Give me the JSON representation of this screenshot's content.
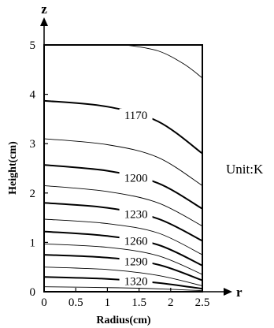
{
  "chart_data": {
    "type": "contour",
    "x": {
      "label": "Radius(cm)",
      "range": [
        0,
        2.5
      ],
      "ticks": [
        0,
        0.5,
        1,
        1.5,
        2,
        2.5
      ],
      "tick_labels": [
        "0",
        "0.5",
        "1",
        "1.5",
        "2",
        "2.5"
      ],
      "arrow_label": "r"
    },
    "y": {
      "label": "Height(cm)",
      "range": [
        0,
        5
      ],
      "ticks": [
        0,
        1,
        2,
        3,
        4,
        5
      ],
      "tick_labels": [
        "0",
        "1",
        "2",
        "3",
        "4",
        "5"
      ],
      "arrow_label": "z"
    },
    "unit": "Unit:K",
    "contours": [
      {
        "level": 1335,
        "label": "",
        "major": false,
        "points": [
          [
            0,
            0.1
          ],
          [
            1.2,
            0.08
          ],
          [
            2.0,
            0.05
          ],
          [
            2.5,
            0.02
          ]
        ]
      },
      {
        "level": 1320,
        "label": "1320",
        "major": true,
        "points": [
          [
            0,
            0.3
          ],
          [
            1.0,
            0.26
          ],
          [
            1.8,
            0.18
          ],
          [
            2.5,
            0.06
          ]
        ]
      },
      {
        "level": 1305,
        "label": "",
        "major": false,
        "points": [
          [
            0,
            0.5
          ],
          [
            1.0,
            0.45
          ],
          [
            1.8,
            0.33
          ],
          [
            2.5,
            0.12
          ]
        ]
      },
      {
        "level": 1290,
        "label": "1290",
        "major": true,
        "points": [
          [
            0,
            0.75
          ],
          [
            1.0,
            0.69
          ],
          [
            1.8,
            0.55
          ],
          [
            2.5,
            0.23
          ]
        ]
      },
      {
        "level": 1275,
        "label": "",
        "major": false,
        "points": [
          [
            0,
            0.97
          ],
          [
            1.0,
            0.9
          ],
          [
            1.8,
            0.73
          ],
          [
            2.5,
            0.35
          ]
        ]
      },
      {
        "level": 1260,
        "label": "1260",
        "major": true,
        "points": [
          [
            0,
            1.22
          ],
          [
            1.0,
            1.13
          ],
          [
            1.8,
            0.95
          ],
          [
            2.5,
            0.53
          ]
        ]
      },
      {
        "level": 1245,
        "label": "",
        "major": false,
        "points": [
          [
            0,
            1.47
          ],
          [
            1.0,
            1.38
          ],
          [
            1.8,
            1.19
          ],
          [
            2.5,
            0.75
          ]
        ]
      },
      {
        "level": 1230,
        "label": "1230",
        "major": true,
        "points": [
          [
            0,
            1.8
          ],
          [
            1.0,
            1.7
          ],
          [
            1.8,
            1.48
          ],
          [
            2.5,
            1.03
          ]
        ]
      },
      {
        "level": 1215,
        "label": "",
        "major": false,
        "points": [
          [
            0,
            2.15
          ],
          [
            1.0,
            2.03
          ],
          [
            1.8,
            1.8
          ],
          [
            2.5,
            1.33
          ]
        ]
      },
      {
        "level": 1200,
        "label": "1200",
        "major": true,
        "points": [
          [
            0,
            2.57
          ],
          [
            1.0,
            2.45
          ],
          [
            1.8,
            2.2
          ],
          [
            2.5,
            1.68
          ]
        ]
      },
      {
        "level": 1185,
        "label": "",
        "major": false,
        "points": [
          [
            0,
            3.1
          ],
          [
            1.0,
            2.98
          ],
          [
            1.8,
            2.72
          ],
          [
            2.5,
            2.15
          ]
        ]
      },
      {
        "level": 1170,
        "label": "1170",
        "major": true,
        "points": [
          [
            0,
            3.87
          ],
          [
            1.0,
            3.75
          ],
          [
            1.8,
            3.45
          ],
          [
            2.5,
            2.8
          ]
        ]
      },
      {
        "level": 1155,
        "label": "",
        "major": false,
        "points": [
          [
            1.3,
            5.0
          ],
          [
            1.8,
            4.88
          ],
          [
            2.2,
            4.62
          ],
          [
            2.5,
            4.33
          ]
        ]
      }
    ]
  }
}
